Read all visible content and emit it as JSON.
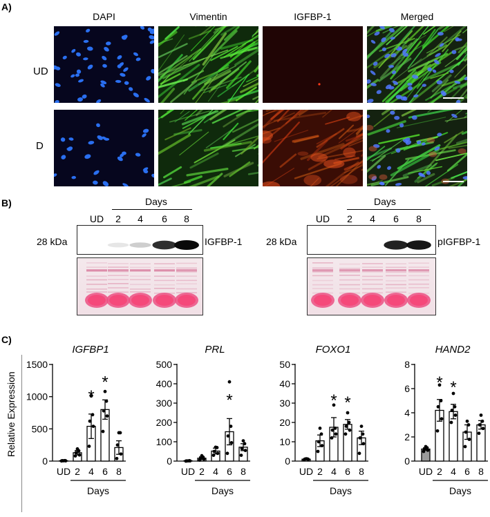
{
  "panel_a": {
    "letter": "A)",
    "columns": [
      "DAPI",
      "Vimentin",
      "IGFBP-1",
      "Merged"
    ],
    "rows": [
      "UD",
      "D"
    ]
  },
  "panel_b": {
    "letter": "B)",
    "left": {
      "days_label": "Days",
      "lanes": [
        "UD",
        "2",
        "4",
        "6",
        "8"
      ],
      "mw": "28 kDa",
      "protein": "IGFBP-1",
      "band_intensity": [
        0.0,
        0.1,
        0.2,
        0.85,
        1.0
      ]
    },
    "right": {
      "days_label": "Days",
      "lanes": [
        "UD",
        "2",
        "4",
        "6",
        "8"
      ],
      "mw": "28 kDa",
      "protein": "pIGFBP-1",
      "band_intensity": [
        0.0,
        0.0,
        0.0,
        0.9,
        0.95
      ]
    }
  },
  "panel_c": {
    "letter": "C)",
    "ylabel": "Relative Expression",
    "xlabel": "Days"
  },
  "chart_data": [
    {
      "type": "bar",
      "title": "IGFBP1",
      "categories": [
        "UD",
        "2",
        "4",
        "6",
        "8"
      ],
      "values": [
        5,
        130,
        540,
        800,
        210
      ],
      "errors": [
        5,
        35,
        190,
        150,
        105
      ],
      "points": [
        [
          2,
          4,
          6,
          8,
          5
        ],
        [
          80,
          95,
          130,
          160,
          190
        ],
        [
          230,
          540,
          620,
          720,
          1010
        ],
        [
          460,
          700,
          780,
          930,
          1080
        ],
        [
          40,
          110,
          250,
          440,
          440
        ]
      ],
      "significant": [
        false,
        false,
        true,
        true,
        false
      ],
      "ylim": [
        0,
        1500
      ],
      "yticks": [
        0,
        500,
        1000,
        1500
      ],
      "xlabel": "Days",
      "ylabel": "Relative Expression",
      "first_bar_gray": false
    },
    {
      "type": "bar",
      "title": "PRL",
      "categories": [
        "UD",
        "2",
        "4",
        "6",
        "8"
      ],
      "values": [
        1,
        15,
        52,
        152,
        72
      ],
      "errors": [
        1,
        7,
        15,
        68,
        18
      ],
      "points": [
        [
          0,
          1,
          1,
          2,
          1
        ],
        [
          5,
          10,
          14,
          20,
          28
        ],
        [
          30,
          40,
          50,
          70,
          72
        ],
        [
          40,
          95,
          130,
          180,
          410
        ],
        [
          30,
          55,
          65,
          90,
          105
        ]
      ],
      "significant": [
        false,
        false,
        false,
        true,
        false
      ],
      "ylim": [
        0,
        500
      ],
      "yticks": [
        0,
        100,
        200,
        300,
        400,
        500
      ],
      "xlabel": "Days",
      "ylabel": "",
      "first_bar_gray": false
    },
    {
      "type": "bar",
      "title": "FOXO1",
      "categories": [
        "UD",
        "2",
        "4",
        "6",
        "8"
      ],
      "values": [
        1,
        10.5,
        17.5,
        19,
        12
      ],
      "errors": [
        0.3,
        3,
        5,
        2.5,
        3.5
      ],
      "points": [
        [
          0.7,
          0.9,
          1.0,
          1.1,
          1.2
        ],
        [
          5,
          8,
          10,
          14,
          17
        ],
        [
          12,
          14,
          16,
          17,
          29
        ],
        [
          14,
          16,
          18,
          20,
          25
        ],
        [
          4,
          9,
          12,
          14,
          18
        ]
      ],
      "significant": [
        false,
        false,
        true,
        true,
        false
      ],
      "ylim": [
        0,
        50
      ],
      "yticks": [
        0,
        10,
        20,
        30,
        40,
        50
      ],
      "xlabel": "Days",
      "ylabel": "",
      "first_bar_gray": false
    },
    {
      "type": "bar",
      "title": "HAND2",
      "categories": [
        "UD",
        "2",
        "4",
        "6",
        "8"
      ],
      "values": [
        1,
        4.2,
        4.1,
        2.4,
        3.0
      ],
      "errors": [
        0.1,
        0.9,
        0.6,
        0.6,
        0.35
      ],
      "points": [
        [
          0.8,
          0.9,
          1.0,
          1.1,
          1.2
        ],
        [
          2.5,
          3.5,
          4.5,
          5.0,
          6.3
        ],
        [
          3.2,
          3.8,
          4.2,
          4.5,
          5.6
        ],
        [
          1.2,
          1.8,
          2.4,
          3.0,
          3.3
        ],
        [
          2.3,
          2.7,
          3.0,
          3.3,
          3.8
        ]
      ],
      "significant": [
        false,
        true,
        true,
        false,
        false
      ],
      "ylim": [
        0,
        8
      ],
      "yticks": [
        0,
        2,
        4,
        6,
        8
      ],
      "xlabel": "Days",
      "ylabel": "",
      "first_bar_gray": true
    }
  ]
}
